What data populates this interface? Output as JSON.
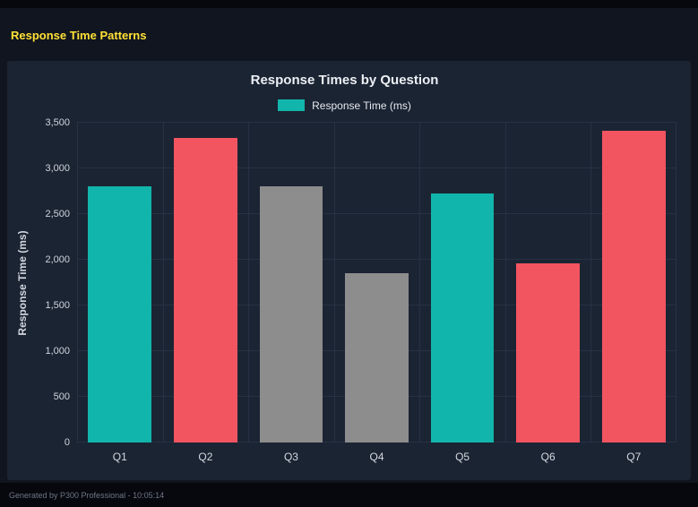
{
  "page": {
    "title": "Response Time Patterns",
    "footer": "Generated by P300 Professional - 10:05:14"
  },
  "colors": {
    "accent_yellow": "#ffe135",
    "panel_background": "#1b2433",
    "page_background": "#11151f",
    "gridline": "#283144",
    "teal": "#12b5ab",
    "red": "#f25460",
    "gray": "#8d8d8d"
  },
  "chart_data": {
    "type": "bar",
    "title": "Response Times by Question",
    "legend": [
      {
        "label": "Response Time (ms)",
        "color": "#12b5ab"
      }
    ],
    "legend_position": "top",
    "categories": [
      "Q1",
      "Q2",
      "Q3",
      "Q4",
      "Q5",
      "Q6",
      "Q7"
    ],
    "values": [
      2800,
      3330,
      2800,
      1850,
      2730,
      1960,
      3410
    ],
    "bar_colors": [
      "#12b5ab",
      "#f25460",
      "#8d8d8d",
      "#8d8d8d",
      "#12b5ab",
      "#f25460",
      "#f25460"
    ],
    "xlabel": "",
    "ylabel": "Response Time (ms)",
    "ylim": [
      0,
      3500
    ],
    "ytick_step": 500,
    "grid": true
  }
}
